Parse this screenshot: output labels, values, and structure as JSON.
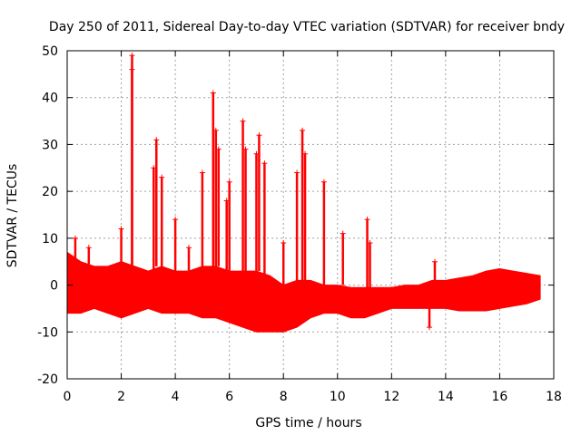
{
  "chart_data": {
    "type": "scatter",
    "title": "Day 250 of 2011, Sidereal Day-to-day VTEC variation (SDTVAR) for receiver bndy",
    "xlabel": "GPS time / hours",
    "ylabel": "SDTVAR / TECUs",
    "xlim": [
      0,
      18
    ],
    "ylim": [
      -20,
      50
    ],
    "xticks": [
      "0",
      "2",
      "4",
      "6",
      "8",
      "10",
      "12",
      "14",
      "16",
      "18"
    ],
    "yticks": [
      "-20",
      "-10",
      "0",
      "10",
      "20",
      "30",
      "40",
      "50"
    ],
    "grid": true,
    "marker": "+",
    "color": "#ff0000",
    "series": [
      {
        "name": "SDTVAR",
        "x": [
          0.3,
          0.8,
          2.0,
          2.4,
          2.4,
          3.2,
          3.3,
          3.5,
          4.0,
          4.5,
          5.0,
          5.4,
          5.5,
          5.6,
          5.9,
          6.0,
          6.5,
          6.6,
          7.0,
          7.1,
          7.3,
          8.0,
          8.5,
          8.7,
          8.8,
          9.5,
          10.2,
          11.1,
          11.2,
          13.4,
          13.6,
          16.0
        ],
        "y": [
          10,
          8,
          12,
          49,
          46,
          25,
          31,
          23,
          14,
          8,
          24,
          41,
          33,
          29,
          18,
          22,
          35,
          29,
          28,
          32,
          26,
          9,
          24,
          33,
          28,
          22,
          11,
          14,
          9,
          -9,
          5,
          3
        ]
      }
    ],
    "envelope": {
      "x": [
        0,
        0.5,
        1,
        1.5,
        2,
        2.5,
        3,
        3.5,
        4,
        4.5,
        5,
        5.5,
        6,
        6.5,
        7,
        7.5,
        8,
        8.5,
        9,
        9.5,
        10,
        10.5,
        11,
        11.5,
        12,
        12.5,
        13,
        13.5,
        14,
        14.5,
        15,
        15.5,
        16,
        16.5,
        17,
        17.5
      ],
      "upper": [
        7,
        5,
        4,
        4,
        5,
        4,
        3,
        4,
        3,
        3,
        4,
        4,
        3,
        3,
        3,
        2,
        0,
        1,
        1,
        0,
        0,
        -0.5,
        -0.5,
        -0.5,
        -0.5,
        0,
        0,
        1,
        1,
        1.5,
        2,
        3,
        3.5,
        3,
        2.5,
        2
      ],
      "lower": [
        -6,
        -6,
        -5,
        -6,
        -7,
        -6,
        -5,
        -6,
        -6,
        -6,
        -7,
        -7,
        -8,
        -9,
        -10,
        -10,
        -10,
        -9,
        -7,
        -6,
        -6,
        -7,
        -7,
        -6,
        -5,
        -5,
        -5,
        -5,
        -5,
        -5.5,
        -5.5,
        -5.5,
        -5,
        -4.5,
        -4,
        -3
      ]
    }
  }
}
